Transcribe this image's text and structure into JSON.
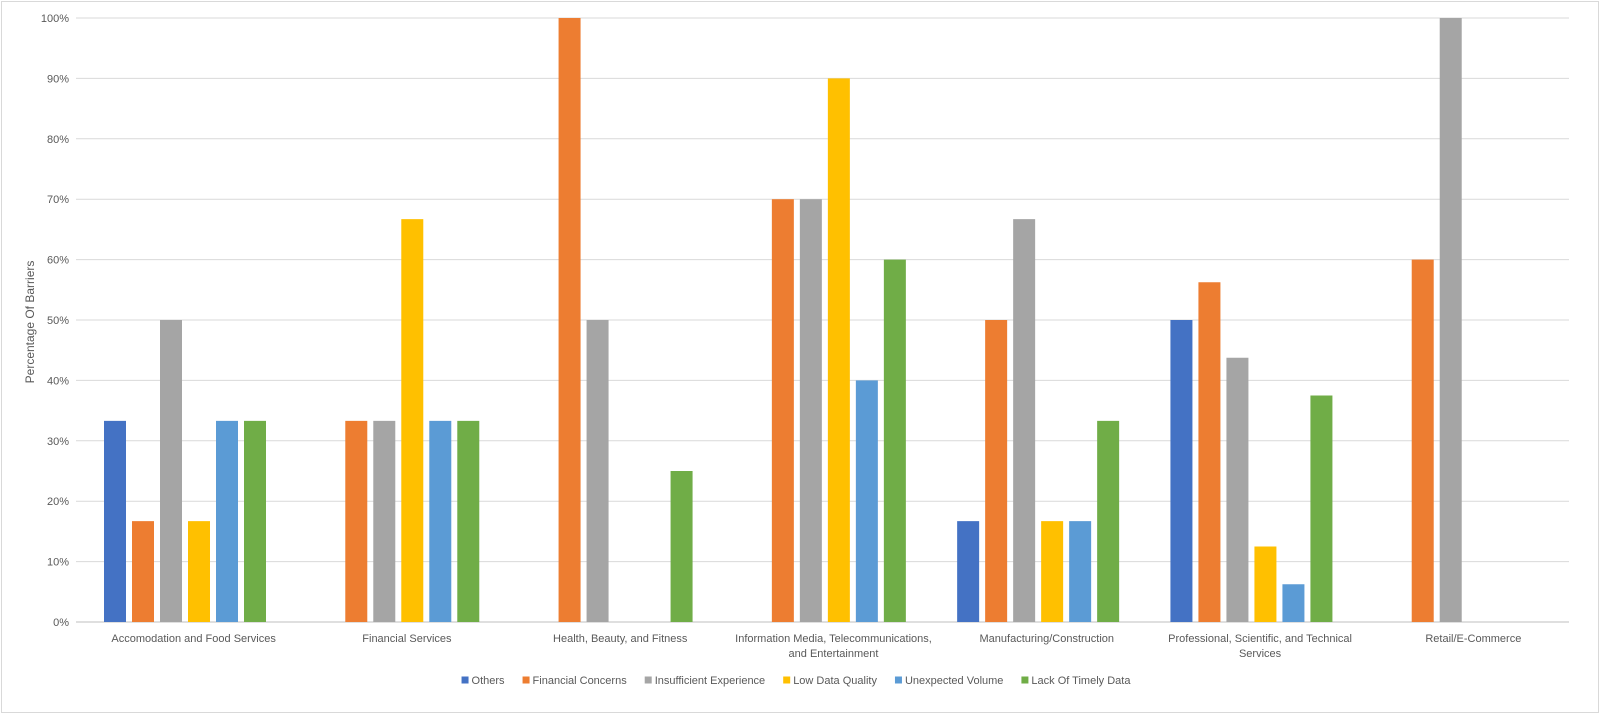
{
  "chart_data": {
    "type": "bar",
    "title": "",
    "xlabel": "",
    "ylabel": "Percentage Of Barriers",
    "ylim": [
      0,
      100
    ],
    "y_tick_labels": [
      "0%",
      "10%",
      "20%",
      "30%",
      "40%",
      "50%",
      "60%",
      "70%",
      "80%",
      "90%",
      "100%"
    ],
    "grid": true,
    "legend_position": "bottom",
    "categories": [
      [
        "Accomodation and Food Services"
      ],
      [
        "Financial Services"
      ],
      [
        "Health, Beauty, and Fitness"
      ],
      [
        "Information Media, Telecommunications,",
        "and Entertainment"
      ],
      [
        "Manufacturing/Construction"
      ],
      [
        "Professional, Scientific, and Technical",
        "Services"
      ],
      [
        "Retail/E-Commerce"
      ]
    ],
    "series": [
      {
        "name": "Others",
        "color": "#4472C4",
        "values": [
          33.3,
          0,
          0,
          0,
          16.7,
          50,
          0
        ]
      },
      {
        "name": "Financial Concerns",
        "color": "#ED7D31",
        "values": [
          16.7,
          33.3,
          100,
          70,
          50,
          56.25,
          60
        ]
      },
      {
        "name": "Insufficient Experience",
        "color": "#A5A5A5",
        "values": [
          50,
          33.3,
          50,
          70,
          66.7,
          43.75,
          100
        ]
      },
      {
        "name": "Low Data Quality",
        "color": "#FFC000",
        "values": [
          16.7,
          66.7,
          0,
          90,
          16.7,
          12.5,
          0
        ]
      },
      {
        "name": "Unexpected Volume",
        "color": "#5B9BD5",
        "values": [
          33.3,
          33.3,
          0,
          40,
          16.7,
          6.25,
          0
        ]
      },
      {
        "name": "Lack Of Timely Data",
        "color": "#70AD47",
        "values": [
          33.3,
          33.3,
          25,
          60,
          33.3,
          37.5,
          0
        ]
      }
    ]
  }
}
